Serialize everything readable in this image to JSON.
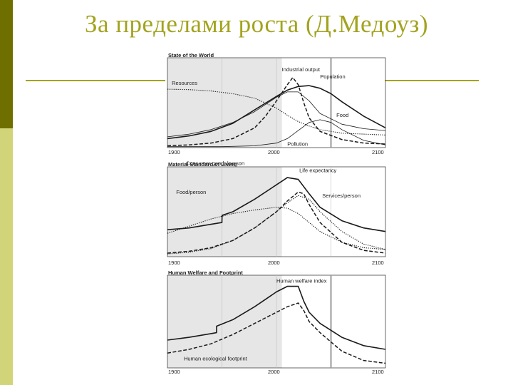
{
  "slide": {
    "title": "За пределами роста (Д.Медоуз)"
  },
  "colors": {
    "accent": "#a3a31f",
    "sidebar_dark": "#6f6f00",
    "sidebar_light": "#d2d47a",
    "history_shade": "#e6e6e6"
  },
  "chart_data": [
    {
      "type": "line",
      "title": "State of the World",
      "x_ticks": [
        "1900",
        "2000",
        "2100"
      ],
      "xlim": [
        1900,
        2100
      ],
      "shaded_range": [
        1900,
        2005
      ],
      "marker_year": 2050,
      "series": [
        {
          "name": "Population",
          "style": "solid",
          "width": 1.6,
          "x": [
            1900,
            1920,
            1940,
            1960,
            1980,
            2000,
            2010,
            2020,
            2030,
            2040,
            2050,
            2060,
            2080,
            2100
          ],
          "y": [
            0.1,
            0.13,
            0.18,
            0.27,
            0.42,
            0.57,
            0.64,
            0.68,
            0.69,
            0.66,
            0.6,
            0.51,
            0.35,
            0.22
          ]
        },
        {
          "name": "Industrial output",
          "style": "dashed",
          "width": 1.5,
          "x": [
            1900,
            1920,
            1940,
            1960,
            1980,
            1990,
            2000,
            2010,
            2015,
            2020,
            2025,
            2030,
            2040,
            2060,
            2080,
            2100
          ],
          "y": [
            0.02,
            0.03,
            0.05,
            0.1,
            0.22,
            0.35,
            0.52,
            0.7,
            0.78,
            0.7,
            0.5,
            0.33,
            0.18,
            0.09,
            0.05,
            0.04
          ]
        },
        {
          "name": "Resources",
          "style": "dotted",
          "width": 1.1,
          "x": [
            1900,
            1920,
            1940,
            1960,
            1980,
            2000,
            2010,
            2020,
            2030,
            2040,
            2060,
            2080,
            2100
          ],
          "y": [
            0.65,
            0.645,
            0.63,
            0.6,
            0.55,
            0.44,
            0.36,
            0.29,
            0.24,
            0.2,
            0.16,
            0.15,
            0.14
          ]
        },
        {
          "name": "Food",
          "style": "solid",
          "width": 0.8,
          "x": [
            1900,
            1920,
            1940,
            1960,
            1980,
            2000,
            2010,
            2020,
            2030,
            2040,
            2060,
            2080,
            2100
          ],
          "y": [
            0.12,
            0.15,
            0.2,
            0.28,
            0.4,
            0.56,
            0.62,
            0.62,
            0.52,
            0.38,
            0.26,
            0.21,
            0.19
          ]
        },
        {
          "name": "Pollution",
          "style": "solid",
          "width": 0.8,
          "x": [
            1900,
            1950,
            1980,
            2000,
            2010,
            2020,
            2030,
            2040,
            2050,
            2060,
            2080,
            2100
          ],
          "y": [
            0.01,
            0.01,
            0.02,
            0.05,
            0.1,
            0.19,
            0.28,
            0.31,
            0.28,
            0.2,
            0.08,
            0.03
          ]
        }
      ],
      "annotations": [
        {
          "text": "Industrial output",
          "year": 2005,
          "value": 0.85
        },
        {
          "text": "Population",
          "year": 2040,
          "value": 0.77
        },
        {
          "text": "Resources",
          "year": 1904,
          "value": 0.7
        },
        {
          "text": "Food",
          "year": 2055,
          "value": 0.34
        },
        {
          "text": "Pollution",
          "year": 2010,
          "value": 0.02
        }
      ]
    },
    {
      "type": "line",
      "title": "Material Standard of Living",
      "x_ticks": [
        "1900",
        "2000",
        "2100"
      ],
      "xlim": [
        1900,
        2100
      ],
      "shaded_range": [
        1900,
        2005
      ],
      "marker_year": null,
      "series": [
        {
          "name": "Life expectancy",
          "style": "solid",
          "width": 1.6,
          "x": [
            1900,
            1920,
            1940,
            1950,
            1950.1,
            1960,
            1980,
            2000,
            2010,
            2020,
            2030,
            2040,
            2060,
            2080,
            2100
          ],
          "y": [
            0.3,
            0.32,
            0.36,
            0.38,
            0.46,
            0.5,
            0.64,
            0.8,
            0.88,
            0.86,
            0.7,
            0.55,
            0.4,
            0.32,
            0.28
          ]
        },
        {
          "name": "Food/person",
          "style": "dotted",
          "width": 1.1,
          "x": [
            1900,
            1920,
            1940,
            1960,
            1980,
            2000,
            2010,
            2020,
            2030,
            2040,
            2060,
            2080,
            2100
          ],
          "y": [
            0.26,
            0.34,
            0.42,
            0.48,
            0.52,
            0.55,
            0.54,
            0.48,
            0.38,
            0.28,
            0.16,
            0.1,
            0.08
          ]
        },
        {
          "name": "Consumer goods/person",
          "style": "dashed",
          "width": 1.5,
          "x": [
            1900,
            1920,
            1940,
            1960,
            1980,
            2000,
            2010,
            2020,
            2025,
            2030,
            2040,
            2060,
            2080,
            2100
          ],
          "y": [
            0.04,
            0.06,
            0.1,
            0.18,
            0.32,
            0.5,
            0.62,
            0.72,
            0.7,
            0.58,
            0.38,
            0.16,
            0.07,
            0.04
          ]
        },
        {
          "name": "Services/person",
          "style": "dotted",
          "width": 1.1,
          "x": [
            1900,
            1920,
            1940,
            1960,
            1980,
            2000,
            2010,
            2020,
            2030,
            2040,
            2060,
            2080,
            2100
          ],
          "y": [
            0.03,
            0.05,
            0.09,
            0.18,
            0.32,
            0.5,
            0.6,
            0.68,
            0.64,
            0.5,
            0.28,
            0.14,
            0.08
          ]
        }
      ],
      "annotations": [
        {
          "text": "Consumer goods/person",
          "year": 1917,
          "value": 1.02
        },
        {
          "text": "Life expectancy",
          "year": 2021,
          "value": 0.94
        },
        {
          "text": "Food/person",
          "year": 1908,
          "value": 0.7
        },
        {
          "text": "Services/person",
          "year": 2042,
          "value": 0.66
        }
      ]
    },
    {
      "type": "line",
      "title": "Human Welfare and Footprint",
      "x_ticks": [
        "1900",
        "2000",
        "2100"
      ],
      "xlim": [
        1900,
        2100
      ],
      "shaded_range": [
        1900,
        2005
      ],
      "marker_year": 2050,
      "series": [
        {
          "name": "Human welfare index",
          "style": "solid",
          "width": 1.6,
          "x": [
            1900,
            1920,
            1940,
            1945,
            1945.1,
            1960,
            1980,
            2000,
            2010,
            2020,
            2025,
            2030,
            2040,
            2060,
            2080,
            2100
          ],
          "y": [
            0.3,
            0.33,
            0.37,
            0.38,
            0.45,
            0.52,
            0.66,
            0.82,
            0.88,
            0.88,
            0.72,
            0.6,
            0.48,
            0.33,
            0.24,
            0.2
          ]
        },
        {
          "name": "Human ecological footprint",
          "style": "dashed",
          "width": 1.5,
          "x": [
            1900,
            1920,
            1940,
            1960,
            1980,
            2000,
            2010,
            2020,
            2025,
            2030,
            2040,
            2060,
            2080,
            2100
          ],
          "y": [
            0.16,
            0.2,
            0.26,
            0.36,
            0.48,
            0.6,
            0.66,
            0.7,
            0.62,
            0.5,
            0.38,
            0.18,
            0.08,
            0.05
          ]
        }
      ],
      "annotations": [
        {
          "text": "Human welfare index",
          "year": 2000,
          "value": 0.92
        },
        {
          "text": "Human ecological footprint",
          "year": 1915,
          "value": 0.08
        }
      ]
    }
  ]
}
